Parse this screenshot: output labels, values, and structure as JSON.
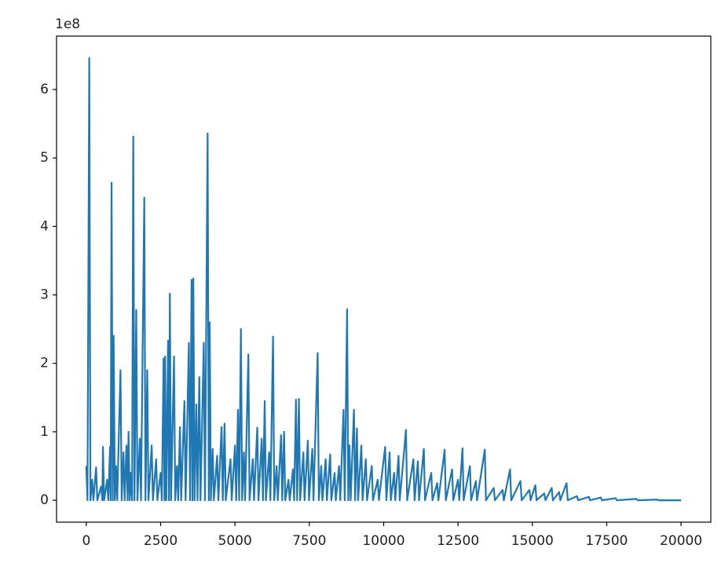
{
  "chart_data": {
    "type": "line",
    "offset_label": "1e8",
    "color": "#1f77b4",
    "xlim": [
      -1000,
      21000
    ],
    "ylim": [
      -0.32,
      6.78
    ],
    "xticks": [
      0,
      2500,
      5000,
      7500,
      10000,
      12500,
      15000,
      17500,
      20000
    ],
    "yticks": [
      0,
      1,
      2,
      3,
      4,
      5,
      6
    ],
    "x": [
      0,
      40,
      100,
      140,
      200,
      240,
      330,
      370,
      500,
      540,
      560,
      600,
      700,
      740,
      800,
      820,
      850,
      890,
      920,
      960,
      1000,
      1040,
      1150,
      1190,
      1250,
      1290,
      1350,
      1390,
      1420,
      1460,
      1500,
      1540,
      1580,
      1620,
      1680,
      1720,
      1800,
      1840,
      1950,
      1990,
      2050,
      2090,
      2200,
      2240,
      2350,
      2390,
      2500,
      2540,
      2600,
      2630,
      2650,
      2690,
      2750,
      2780,
      2810,
      2850,
      2950,
      2990,
      3050,
      3090,
      3150,
      3190,
      3300,
      3340,
      3450,
      3490,
      3540,
      3570,
      3600,
      3640,
      3700,
      3740,
      3800,
      3840,
      3950,
      3990,
      4080,
      4120,
      4150,
      4190,
      4250,
      4290,
      4400,
      4440,
      4550,
      4590,
      4650,
      4690,
      4850,
      4890,
      5000,
      5040,
      5100,
      5140,
      5200,
      5240,
      5300,
      5340,
      5450,
      5490,
      5600,
      5640,
      5750,
      5790,
      5900,
      5940,
      6000,
      6040,
      6150,
      6190,
      6280,
      6320,
      6400,
      6440,
      6550,
      6590,
      6650,
      6690,
      6800,
      6840,
      6950,
      6990,
      7050,
      7090,
      7150,
      7190,
      7300,
      7340,
      7450,
      7490,
      7600,
      7640,
      7780,
      7820,
      7900,
      7940,
      8050,
      8090,
      8200,
      8240,
      8350,
      8390,
      8500,
      8540,
      8650,
      8690,
      8770,
      8810,
      8850,
      8890,
      9000,
      9040,
      9100,
      9140,
      9250,
      9290,
      9400,
      9440,
      9600,
      9640,
      9800,
      9840,
      10050,
      10090,
      10200,
      10240,
      10350,
      10390,
      10500,
      10540,
      10750,
      10790,
      11000,
      11040,
      11150,
      11190,
      11350,
      11390,
      11600,
      11640,
      11800,
      11840,
      12050,
      12090,
      12300,
      12340,
      12500,
      12540,
      12650,
      12690,
      12900,
      12940,
      13100,
      13140,
      13400,
      13440,
      13700,
      13740,
      14000,
      14040,
      14250,
      14290,
      14600,
      14640,
      14900,
      14940,
      15100,
      15140,
      15400,
      15440,
      15650,
      15690,
      15900,
      15940,
      16150,
      16190,
      16500,
      16540,
      16900,
      16940,
      17300,
      17340,
      17800,
      17840,
      18500,
      18540,
      19200,
      19240,
      20000
    ],
    "values": [
      0.5,
      0,
      6.46,
      0,
      0.3,
      0,
      0.48,
      0,
      0.2,
      0,
      0.78,
      0,
      0.3,
      0,
      0.78,
      0,
      4.64,
      0,
      2.4,
      0,
      0.5,
      0,
      1.9,
      0,
      0.7,
      0,
      0.8,
      0,
      1.0,
      0,
      0.4,
      0,
      5.31,
      0,
      2.78,
      0,
      0.9,
      0,
      4.42,
      0,
      1.9,
      0,
      0.8,
      0,
      0.6,
      0,
      0.4,
      0,
      2.07,
      0,
      2.1,
      0,
      2.33,
      0,
      3.02,
      0,
      2.1,
      0,
      0.5,
      0,
      1.07,
      0,
      1.45,
      0,
      2.3,
      0,
      3.22,
      0,
      3.24,
      0,
      1.4,
      0,
      1.8,
      0,
      2.3,
      0,
      5.36,
      0,
      2.6,
      0,
      0.75,
      0,
      0.65,
      0,
      1.07,
      0,
      1.12,
      0,
      0.6,
      0,
      0.8,
      0,
      1.32,
      0,
      2.5,
      0,
      0.7,
      0,
      2.13,
      0,
      0.6,
      0,
      1.06,
      0,
      0.9,
      0,
      1.45,
      0,
      0.7,
      0,
      2.39,
      0,
      0.5,
      0,
      0.95,
      0,
      1.0,
      0,
      0.3,
      0,
      0.45,
      0,
      1.47,
      0,
      1.48,
      0,
      0.7,
      0,
      0.87,
      0,
      0.75,
      0,
      2.15,
      0,
      0.5,
      0,
      0.6,
      0,
      0.67,
      0,
      0.4,
      0,
      0.5,
      0,
      1.32,
      0,
      2.79,
      0,
      0.8,
      0,
      1.32,
      0,
      1.05,
      0,
      0.8,
      0,
      0.6,
      0,
      0.5,
      0,
      0.3,
      0,
      0.78,
      0,
      0.7,
      0,
      0.4,
      0,
      0.65,
      0,
      1.03,
      0,
      0.6,
      0,
      0.57,
      0,
      0.75,
      0,
      0.4,
      0,
      0.25,
      0,
      0.74,
      0,
      0.45,
      0,
      0.3,
      0,
      0.76,
      0,
      0.5,
      0,
      0.28,
      0,
      0.74,
      0,
      0.18,
      0,
      0.15,
      0,
      0.45,
      0,
      0.28,
      0,
      0.15,
      0,
      0.22,
      0,
      0.1,
      0,
      0.18,
      0,
      0.12,
      0,
      0.25,
      0,
      0.06,
      0,
      0.05,
      0,
      0.04,
      0,
      0.03,
      0,
      0.02,
      0,
      0.01,
      0,
      0
    ]
  }
}
